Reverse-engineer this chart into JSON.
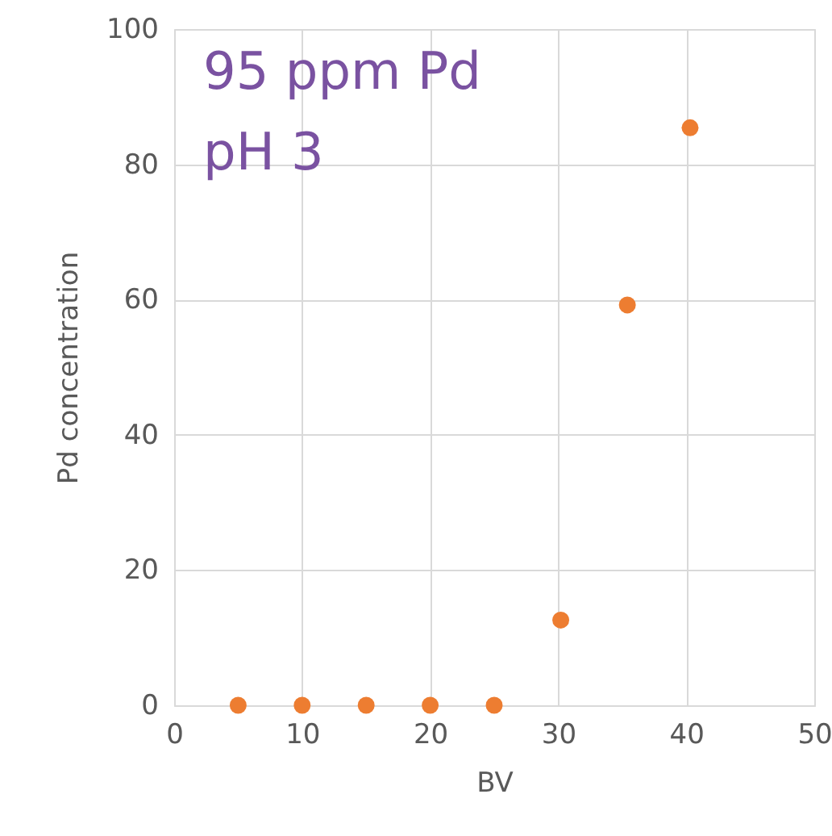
{
  "chart_data": {
    "type": "scatter",
    "xlabel": "BV",
    "ylabel": "Pd concentration",
    "x": [
      5,
      10,
      15,
      20,
      25,
      30.2,
      35.4,
      40.3
    ],
    "series": [
      {
        "color": "#ed7d31",
        "values": [
          0,
          0,
          0,
          0,
          0,
          12.6,
          59.2,
          85.4
        ]
      }
    ],
    "xlim": [
      0,
      50
    ],
    "xticks": [
      0,
      10,
      20,
      30,
      40,
      50
    ],
    "ylim": [
      0,
      100
    ],
    "yticks": [
      0,
      20,
      40,
      60,
      80,
      100
    ],
    "grid": true,
    "marker": "circle",
    "annotations": [
      "95 ppm Pd",
      "pH 3"
    ]
  }
}
